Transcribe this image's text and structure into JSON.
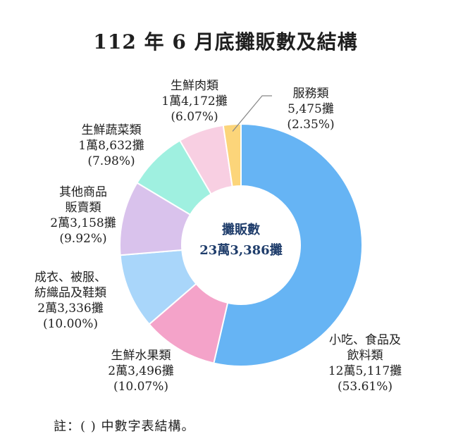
{
  "title": "112 年 6 月底攤販數及結構",
  "note": "註：( ) 中數字表結構。",
  "chart_data": {
    "type": "pie",
    "variant": "donut",
    "center_label": [
      "攤販數",
      "23萬3,386攤"
    ],
    "slices": [
      {
        "name": "小吃、食品及飲料類",
        "label_lines": [
          "小吃、食品及",
          "飲料類"
        ],
        "count_text": "12萬5,117攤",
        "value": 125117,
        "percent_text": "(53.61%)",
        "percent": 53.61,
        "color": "#66b4f4"
      },
      {
        "name": "生鮮水果類",
        "label_lines": [
          "生鮮水果類"
        ],
        "count_text": "2萬3,496攤",
        "value": 23496,
        "percent_text": "(10.07%)",
        "percent": 10.07,
        "color": "#f4a3c9"
      },
      {
        "name": "成衣、被服、紡織品及鞋類",
        "label_lines": [
          "成衣、被服、",
          "紡織品及鞋類"
        ],
        "count_text": "2萬3,336攤",
        "value": 23336,
        "percent_text": "(10.00%)",
        "percent": 10.0,
        "color": "#a9d6fa"
      },
      {
        "name": "其他商品販賣類",
        "label_lines": [
          "其他商品",
          "販賣類"
        ],
        "count_text": "2萬3,158攤",
        "value": 23158,
        "percent_text": "(9.92%)",
        "percent": 9.92,
        "color": "#d9c2ec"
      },
      {
        "name": "生鮮蔬菜類",
        "label_lines": [
          "生鮮蔬菜類"
        ],
        "count_text": "1萬8,632攤",
        "value": 18632,
        "percent_text": "(7.98%)",
        "percent": 7.98,
        "color": "#9ff0e0"
      },
      {
        "name": "生鮮肉類",
        "label_lines": [
          "生鮮肉類"
        ],
        "count_text": "1萬4,172攤",
        "value": 14172,
        "percent_text": "(6.07%)",
        "percent": 6.07,
        "color": "#f8cfe2"
      },
      {
        "name": "服務類",
        "label_lines": [
          "服務類"
        ],
        "count_text": "5,475攤",
        "value": 5475,
        "percent_text": "(2.35%)",
        "percent": 2.35,
        "color": "#fcd57a"
      }
    ]
  }
}
